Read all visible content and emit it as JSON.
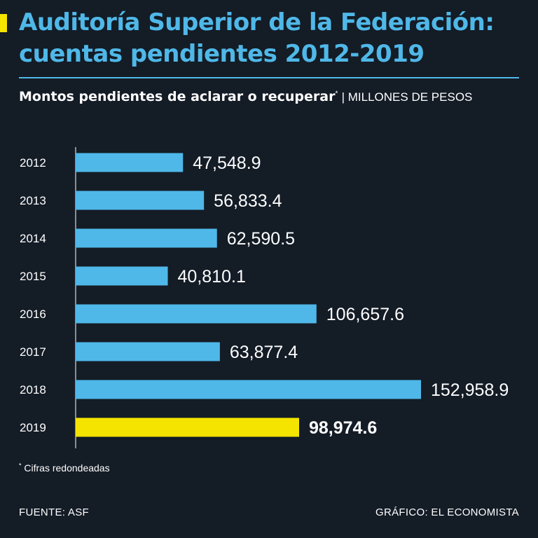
{
  "header": {
    "title_line1": "Auditoría Superior de la Federación:",
    "title_line2": "cuentas pendientes 2012-2019",
    "subtitle": "Montos pendientes de aclarar o recuperar",
    "subtitle_mark": "*",
    "subtitle_unit": "| MILLONES DE PESOS"
  },
  "colors": {
    "background": "#141c26",
    "title": "#4fb8e8",
    "bar": "#4fb8e8",
    "highlight": "#f5e400",
    "text": "#ffffff"
  },
  "chart_data": {
    "type": "bar",
    "orientation": "horizontal",
    "title": "Auditoría Superior de la Federación: cuentas pendientes 2012-2019",
    "subtitle": "Montos pendientes de aclarar o recuperar",
    "unit": "MILLONES DE PESOS",
    "categories": [
      "2012",
      "2013",
      "2014",
      "2015",
      "2016",
      "2017",
      "2018",
      "2019"
    ],
    "values": [
      47548.9,
      56833.4,
      62590.5,
      40810.1,
      106657.6,
      63877.4,
      152958.9,
      98974.6
    ],
    "labels": [
      "47,548.9",
      "56,833.4",
      "62,590.5",
      "40,810.1",
      "106,657.6",
      "63,877.4",
      "152,958.9",
      "98,974.6"
    ],
    "highlight": "2019",
    "xlim": [
      0,
      152958.9
    ],
    "grid": false,
    "legend": "none"
  },
  "footnote": {
    "mark": "*",
    "text": "Cifras redondeadas"
  },
  "footer": {
    "source": "FUENTE: ASF",
    "credit": "GRÁFICO: EL ECONOMISTA"
  }
}
